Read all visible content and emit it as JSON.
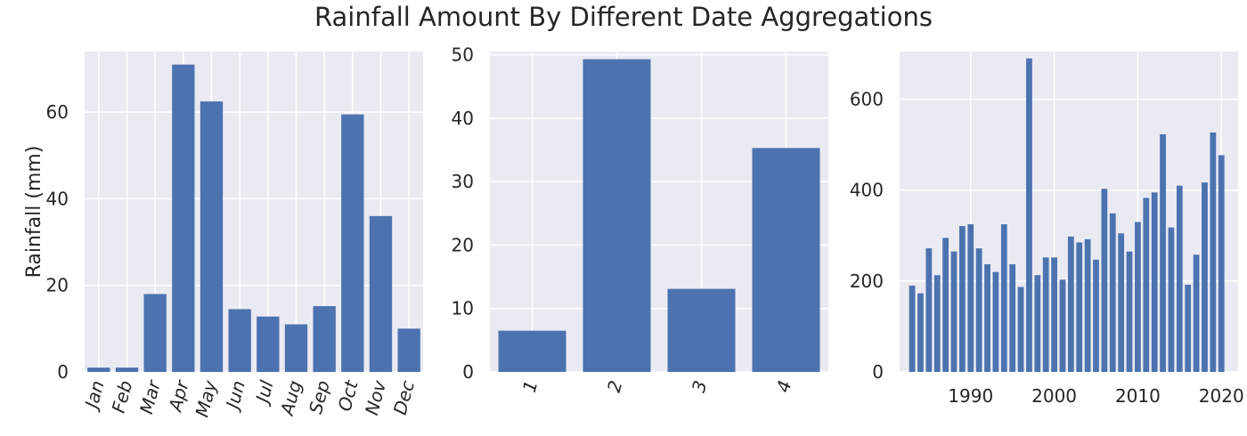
{
  "figure": {
    "title": "Rainfall Amount By Different Date Aggregations"
  },
  "chart_data": [
    {
      "type": "bar",
      "title": "",
      "xlabel": "",
      "ylabel": "Rainfall (mm)",
      "categories": [
        "Jan",
        "Feb",
        "Mar",
        "Apr",
        "May",
        "Jun",
        "Jul",
        "Aug",
        "Sep",
        "Oct",
        "Nov",
        "Dec"
      ],
      "values": [
        1.0,
        1.0,
        18.0,
        71.0,
        62.5,
        14.5,
        12.8,
        11.0,
        15.2,
        59.5,
        36.0,
        10.0
      ],
      "ylim": [
        0,
        74
      ],
      "yticks": [
        0,
        20,
        40,
        60
      ],
      "xtick_rotation": -75,
      "grid": true,
      "color": "#4c72b0"
    },
    {
      "type": "bar",
      "title": "",
      "xlabel": "",
      "ylabel": "",
      "categories": [
        "1",
        "2",
        "3",
        "4"
      ],
      "values": [
        6.5,
        49.3,
        13.1,
        35.3
      ],
      "ylim": [
        0,
        50.5
      ],
      "yticks": [
        0,
        10,
        20,
        30,
        40,
        50
      ],
      "xtick_rotation": -75,
      "grid": true,
      "color": "#4c72b0"
    },
    {
      "type": "bar",
      "title": "",
      "xlabel": "",
      "ylabel": "",
      "x": [
        1983,
        1984,
        1985,
        1986,
        1987,
        1988,
        1989,
        1990,
        1991,
        1992,
        1993,
        1994,
        1995,
        1996,
        1997,
        1998,
        1999,
        2000,
        2001,
        2002,
        2003,
        2004,
        2005,
        2006,
        2007,
        2008,
        2009,
        2010,
        2011,
        2012,
        2013,
        2014,
        2015,
        2016,
        2017,
        2018,
        2019,
        2020
      ],
      "values": [
        190,
        173,
        272,
        213,
        295,
        265,
        321,
        325,
        272,
        237,
        220,
        325,
        237,
        187,
        690,
        213,
        252,
        252,
        203,
        298,
        285,
        292,
        247,
        403,
        349,
        305,
        265,
        330,
        383,
        395,
        523,
        318,
        410,
        192,
        258,
        417,
        527,
        477
      ],
      "xlim": [
        1981.5,
        2022
      ],
      "ylim": [
        0,
        705
      ],
      "yticks": [
        0,
        200,
        400,
        600
      ],
      "xticks": [
        1990,
        2000,
        2010,
        2020
      ],
      "grid": true,
      "color": "#4c72b0"
    }
  ]
}
